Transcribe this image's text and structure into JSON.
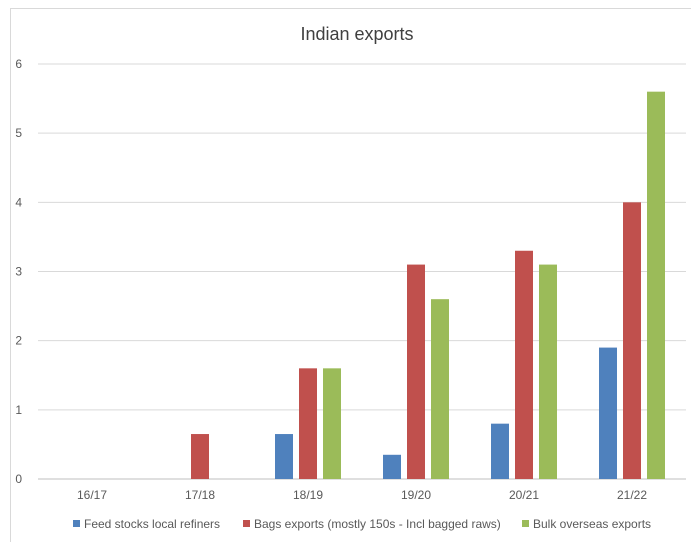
{
  "chart_data": {
    "type": "bar",
    "title": "Indian exports",
    "categories": [
      "16/17",
      "17/18",
      "18/19",
      "19/20",
      "20/21",
      "21/22"
    ],
    "series": [
      {
        "name": "Feed stocks local refiners",
        "color": "#4f81bd",
        "values": [
          0,
          0,
          0.65,
          0.35,
          0.8,
          1.9
        ]
      },
      {
        "name": "Bags exports (mostly 150s - Incl bagged raws)",
        "color": "#c0504d",
        "values": [
          0,
          0.65,
          1.6,
          3.1,
          3.3,
          4.0
        ]
      },
      {
        "name": "Bulk overseas exports",
        "color": "#9bbb59",
        "values": [
          0,
          0,
          1.6,
          2.6,
          3.1,
          5.6
        ]
      }
    ],
    "ylim": [
      0,
      6
    ],
    "yticks": [
      "0",
      "1",
      "2",
      "3",
      "4",
      "5",
      "6"
    ],
    "grid": true,
    "legend": "bottom",
    "xlabel": "",
    "ylabel": ""
  }
}
